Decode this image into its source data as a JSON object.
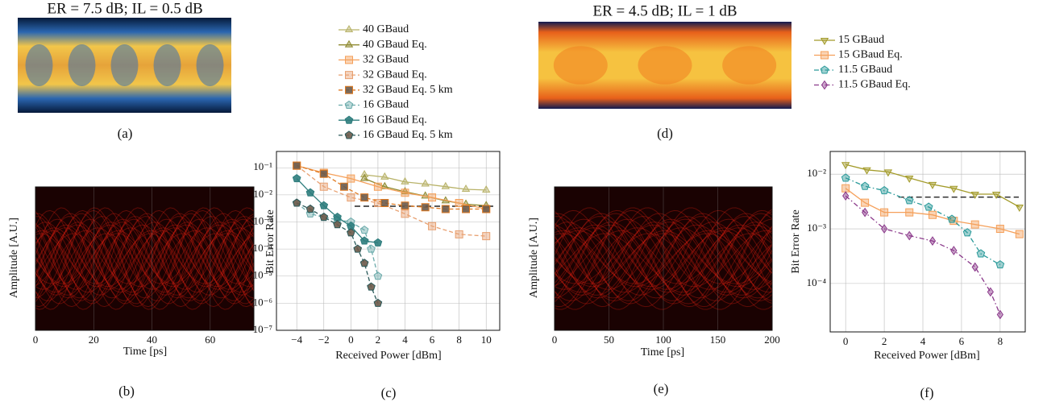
{
  "chart_data": [
    {
      "type": "image",
      "title": "ER = 7.5 dB; IL = 0.5 dB",
      "panel_label": "(a)"
    },
    {
      "type": "eye",
      "panel_label": "(b)",
      "xlabel": "Time [ps]",
      "ylabel": "Amplitude [A.U.]",
      "xlim": [
        0,
        75
      ],
      "xticks": [
        0,
        20,
        40,
        60
      ]
    },
    {
      "type": "line",
      "panel_label": "(c)",
      "xlabel": "Received Power [dBm]",
      "ylabel": "Bit Error Rate",
      "yscale": "log",
      "grid": true,
      "xlim": [
        -5.5,
        11
      ],
      "xticks": [
        {
          "value": -4,
          "label": "−4"
        },
        {
          "value": -2,
          "label": "−2"
        },
        0,
        2,
        4,
        6,
        8,
        10
      ],
      "ylim": [
        1e-07,
        0.4
      ],
      "yticks": [
        {
          "value": 0.1,
          "label": "10⁻¹"
        },
        {
          "value": 0.01,
          "label": "10⁻²"
        },
        {
          "value": 0.001,
          "label": "10⁻³"
        },
        {
          "value": 0.0001,
          "label": "10⁻⁴"
        },
        {
          "value": 1e-05,
          "label": "10⁻⁵"
        },
        {
          "value": 1e-06,
          "label": "10⁻⁶"
        },
        {
          "value": 1e-07,
          "label": "10⁻⁷"
        }
      ],
      "hline": 0.0038,
      "series": [
        {
          "name": "40 GBaud",
          "color": "#b8b268",
          "marker": "triangle-up",
          "dash": "solid",
          "x": [
            1,
            2.5,
            4,
            5.5,
            7,
            8.5,
            10
          ],
          "values": [
            0.055,
            0.045,
            0.03,
            0.025,
            0.02,
            0.016,
            0.015
          ]
        },
        {
          "name": "40 GBaud Eq.",
          "color": "#8f8a30",
          "marker": "triangle-up",
          "dash": "solid",
          "x": [
            1,
            2.5,
            4,
            5.5,
            7,
            8.5,
            10
          ],
          "values": [
            0.04,
            0.02,
            0.013,
            0.009,
            0.006,
            0.0045,
            0.004
          ]
        },
        {
          "name": "32 GBaud",
          "color": "#f5a05a",
          "marker": "square",
          "dash": "solid",
          "x": [
            -4,
            -2,
            0,
            2,
            4,
            6,
            8,
            10
          ],
          "values": [
            0.12,
            0.065,
            0.04,
            0.02,
            0.012,
            0.008,
            0.005,
            0.003
          ]
        },
        {
          "name": "32 GBaud Eq.",
          "color": "#e8a070",
          "marker": "square",
          "dash": "dash",
          "x": [
            -4,
            -2,
            0,
            2,
            4,
            6,
            8,
            10
          ],
          "values": [
            0.12,
            0.02,
            0.008,
            0.005,
            0.002,
            0.0007,
            0.00035,
            0.0003
          ]
        },
        {
          "name": "32 GBaud Eq. 5 km",
          "color": "#e07a20",
          "marker": "square-dark",
          "dash": "dash",
          "x": [
            -4,
            -2,
            -0.5,
            1,
            2.5,
            4,
            5.5,
            7,
            8.5,
            10
          ],
          "values": [
            0.12,
            0.06,
            0.02,
            0.008,
            0.005,
            0.004,
            0.0035,
            0.003,
            0.003,
            0.003
          ]
        },
        {
          "name": "16 GBaud",
          "color": "#6aaaaa",
          "marker": "pentagon",
          "dash": "dash",
          "x": [
            -4,
            -3,
            -2,
            -1,
            0,
            1,
            1.5,
            2
          ],
          "values": [
            0.005,
            0.002,
            0.0015,
            0.0012,
            0.001,
            0.0005,
            0.0001,
            1e-05
          ]
        },
        {
          "name": "16 GBaud Eq.",
          "color": "#2e7d7d",
          "marker": "pentagon-mid",
          "dash": "solid",
          "x": [
            -4,
            -3,
            -2,
            -1,
            0,
            1,
            2
          ],
          "values": [
            0.04,
            0.012,
            0.004,
            0.0015,
            0.0007,
            0.0002,
            0.00017
          ]
        },
        {
          "name": "16 GBaud Eq. 5 km",
          "color": "#2a5a5a",
          "marker": "pentagon-dark",
          "dash": "dash",
          "x": [
            -4,
            -3,
            -2,
            -1,
            0,
            0.5,
            1,
            1.5,
            2
          ],
          "values": [
            0.005,
            0.003,
            0.0015,
            0.0008,
            0.0004,
            0.0001,
            3e-05,
            4e-06,
            1e-06
          ]
        }
      ]
    },
    {
      "type": "image",
      "title": "ER = 4.5 dB; IL = 1 dB",
      "panel_label": "(d)"
    },
    {
      "type": "eye",
      "panel_label": "(e)",
      "xlabel": "Time [ps]",
      "ylabel": "Amplitude [A.U.]",
      "xlim": [
        0,
        200
      ],
      "xticks": [
        0,
        50,
        100,
        150,
        200
      ]
    },
    {
      "type": "line",
      "panel_label": "(f)",
      "xlabel": "Received Power [dBm]",
      "ylabel": "Bit Error Rate",
      "yscale": "log",
      "grid": true,
      "xlim": [
        -0.8,
        9.3
      ],
      "xticks": [
        0,
        2,
        4,
        6,
        8
      ],
      "ylim": [
        1.3e-05,
        0.026
      ],
      "yticks": [
        {
          "value": 0.01,
          "label": "10⁻²"
        },
        {
          "value": 0.001,
          "label": "10⁻³"
        },
        {
          "value": 0.0001,
          "label": "10⁻⁴"
        }
      ],
      "hline": 0.0038,
      "series": [
        {
          "name": "15 GBaud",
          "color": "#a39b2a",
          "marker": "triangle-down",
          "dash": "solid",
          "x": [
            0,
            1.1,
            2.2,
            3.3,
            4.5,
            5.6,
            6.7,
            7.8,
            9
          ],
          "values": [
            0.015,
            0.012,
            0.011,
            0.0085,
            0.0065,
            0.0055,
            0.0043,
            0.0043,
            0.0025
          ]
        },
        {
          "name": "15 GBaud Eq.",
          "color": "#f5a05a",
          "marker": "square",
          "dash": "solid",
          "x": [
            0,
            1,
            2,
            3.3,
            4.5,
            5.6,
            6.7,
            8,
            9
          ],
          "values": [
            0.0055,
            0.003,
            0.002,
            0.002,
            0.0018,
            0.0014,
            0.0012,
            0.001,
            0.0008
          ]
        },
        {
          "name": "11.5 GBaud",
          "color": "#2a9a9a",
          "marker": "pentagon",
          "dash": "dashdot",
          "x": [
            0,
            1,
            2,
            3.3,
            4.3,
            5.5,
            6.3,
            7,
            8
          ],
          "values": [
            0.0085,
            0.006,
            0.005,
            0.0033,
            0.0025,
            0.0015,
            0.00085,
            0.00035,
            0.00022
          ]
        },
        {
          "name": "11.5 GBaud Eq.",
          "color": "#8b3a8b",
          "marker": "diamond",
          "dash": "dashdot",
          "x": [
            0,
            1,
            2,
            3.3,
            4.5,
            5.6,
            6.7,
            7.5,
            8
          ],
          "values": [
            0.004,
            0.002,
            0.001,
            0.00075,
            0.0006,
            0.0004,
            0.0002,
            7e-05,
            2.7e-05
          ]
        }
      ]
    }
  ]
}
